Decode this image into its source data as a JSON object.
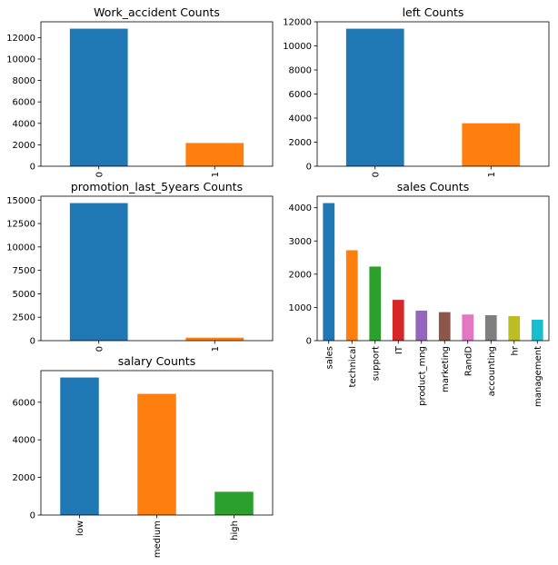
{
  "chart_data": [
    {
      "type": "bar",
      "title": "Work_accident Counts",
      "categories": [
        "0",
        "1"
      ],
      "values": [
        12830,
        2169
      ],
      "ylim": [
        0,
        13471
      ],
      "yticks": [
        0,
        2000,
        4000,
        6000,
        8000,
        10000,
        12000
      ],
      "colors": [
        "#1f77b4",
        "#ff7f0e"
      ],
      "grid": false
    },
    {
      "type": "bar",
      "title": "left Counts",
      "categories": [
        "0",
        "1"
      ],
      "values": [
        11428,
        3571
      ],
      "ylim": [
        0,
        12000
      ],
      "yticks": [
        0,
        2000,
        4000,
        6000,
        8000,
        10000,
        12000
      ],
      "colors": [
        "#1f77b4",
        "#ff7f0e"
      ],
      "grid": false
    },
    {
      "type": "bar",
      "title": "promotion_last_5years Counts",
      "categories": [
        "0",
        "1"
      ],
      "values": [
        14680,
        319
      ],
      "ylim": [
        0,
        15414
      ],
      "yticks": [
        0,
        2500,
        5000,
        7500,
        10000,
        12500,
        15000
      ],
      "colors": [
        "#1f77b4",
        "#ff7f0e"
      ],
      "grid": false
    },
    {
      "type": "bar",
      "title": "sales Counts",
      "categories": [
        "sales",
        "technical",
        "support",
        "IT",
        "product_mng",
        "marketing",
        "RandD",
        "accounting",
        "hr",
        "management"
      ],
      "values": [
        4140,
        2720,
        2229,
        1227,
        902,
        858,
        787,
        767,
        739,
        630
      ],
      "ylim": [
        0,
        4347
      ],
      "yticks": [
        0,
        1000,
        2000,
        3000,
        4000
      ],
      "colors": [
        "#1f77b4",
        "#ff7f0e",
        "#2ca02c",
        "#d62728",
        "#9467bd",
        "#8c564b",
        "#e377c2",
        "#7f7f7f",
        "#bcbd22",
        "#17becf"
      ],
      "grid": false
    },
    {
      "type": "bar",
      "title": "salary Counts",
      "categories": [
        "low",
        "medium",
        "high"
      ],
      "values": [
        7316,
        6446,
        1237
      ],
      "ylim": [
        0,
        7682
      ],
      "yticks": [
        0,
        2000,
        4000,
        6000
      ],
      "colors": [
        "#1f77b4",
        "#ff7f0e",
        "#2ca02c"
      ],
      "grid": false
    }
  ]
}
